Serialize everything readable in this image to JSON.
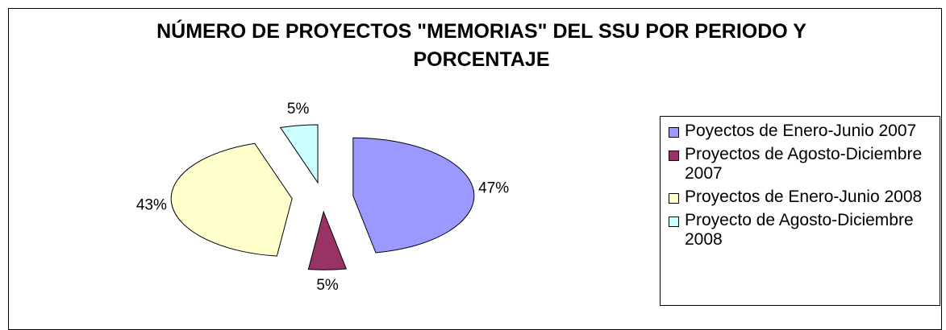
{
  "chart_data": {
    "type": "pie",
    "title": "NÚMERO DE PROYECTOS \"MEMORIAS\" DEL SSU POR PERIODO Y PORCENTAJE",
    "categories": [
      "Poyectos de Enero-Junio 2007",
      "Proyectos de Agosto-Diciembre 2007",
      "Proyectos de Enero-Junio 2008",
      "Proyecto de Agosto-Diciembre 2008"
    ],
    "values": [
      47,
      5,
      43,
      5
    ],
    "value_labels": [
      "47%",
      "5%",
      "43%",
      "5%"
    ],
    "colors": [
      "#9999ff",
      "#993366",
      "#ffffcc",
      "#ccffff"
    ],
    "legend": "right"
  }
}
